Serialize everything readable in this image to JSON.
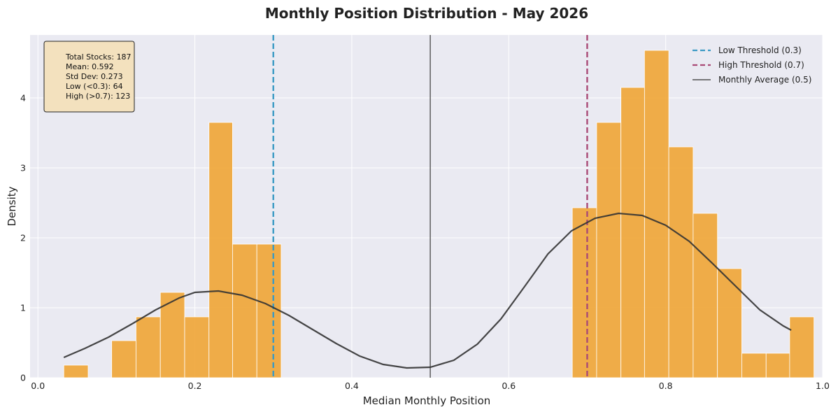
{
  "chart_data": {
    "type": "bar",
    "title": "Monthly Position Distribution - May 2026",
    "xlabel": "Median Monthly Position",
    "ylabel": "Density",
    "xlim": [
      -0.01,
      1.0
    ],
    "ylim": [
      0,
      4.9
    ],
    "x_ticks": [
      "0.0",
      "0.2",
      "0.4",
      "0.6",
      "0.8",
      "1.0"
    ],
    "x_tick_values": [
      0.0,
      0.2,
      0.4,
      0.6,
      0.8,
      1.0
    ],
    "y_ticks": [
      "0",
      "1",
      "2",
      "3",
      "4"
    ],
    "y_tick_values": [
      0,
      1,
      2,
      3,
      4
    ],
    "grid": true,
    "bar_color": "#F0A535",
    "background_color": "#EAEAF2",
    "bins": [
      {
        "x0": 0.033,
        "x1": 0.064,
        "density": 0.18
      },
      {
        "x0": 0.094,
        "x1": 0.125,
        "density": 0.53
      },
      {
        "x0": 0.125,
        "x1": 0.156,
        "density": 0.87
      },
      {
        "x0": 0.156,
        "x1": 0.187,
        "density": 1.22
      },
      {
        "x0": 0.187,
        "x1": 0.218,
        "density": 0.87
      },
      {
        "x0": 0.218,
        "x1": 0.248,
        "density": 3.65
      },
      {
        "x0": 0.248,
        "x1": 0.279,
        "density": 1.91
      },
      {
        "x0": 0.279,
        "x1": 0.31,
        "density": 1.91
      },
      {
        "x0": 0.681,
        "x1": 0.712,
        "density": 2.43
      },
      {
        "x0": 0.712,
        "x1": 0.743,
        "density": 3.65
      },
      {
        "x0": 0.743,
        "x1": 0.773,
        "density": 4.15
      },
      {
        "x0": 0.773,
        "x1": 0.804,
        "density": 4.68
      },
      {
        "x0": 0.804,
        "x1": 0.835,
        "density": 3.3
      },
      {
        "x0": 0.835,
        "x1": 0.866,
        "density": 2.35
      },
      {
        "x0": 0.866,
        "x1": 0.897,
        "density": 1.56
      },
      {
        "x0": 0.897,
        "x1": 0.928,
        "density": 0.35
      },
      {
        "x0": 0.928,
        "x1": 0.958,
        "density": 0.35
      },
      {
        "x0": 0.958,
        "x1": 0.989,
        "density": 0.87
      }
    ],
    "kde": {
      "color": "#333333",
      "x": [
        0.033,
        0.06,
        0.09,
        0.12,
        0.15,
        0.18,
        0.2,
        0.23,
        0.26,
        0.29,
        0.32,
        0.35,
        0.38,
        0.41,
        0.44,
        0.47,
        0.5,
        0.53,
        0.56,
        0.59,
        0.62,
        0.65,
        0.68,
        0.71,
        0.74,
        0.77,
        0.8,
        0.83,
        0.86,
        0.89,
        0.92,
        0.95,
        0.96
      ],
      "y": [
        0.29,
        0.42,
        0.58,
        0.77,
        0.97,
        1.14,
        1.22,
        1.24,
        1.18,
        1.06,
        0.89,
        0.69,
        0.49,
        0.31,
        0.19,
        0.14,
        0.15,
        0.25,
        0.48,
        0.84,
        1.3,
        1.77,
        2.1,
        2.28,
        2.35,
        2.32,
        2.18,
        1.95,
        1.63,
        1.3,
        0.97,
        0.74,
        0.68
      ]
    },
    "reference_lines": [
      {
        "name": "Low Threshold (0.3)",
        "x": 0.3,
        "color": "#3B9AC4",
        "style": "dashed"
      },
      {
        "name": "High Threshold (0.7)",
        "x": 0.7,
        "color": "#A94A76",
        "style": "dashed"
      },
      {
        "name": "Monthly Average (0.5)",
        "x": 0.5,
        "color": "#666666",
        "style": "solid"
      }
    ],
    "legend_position": "top-right",
    "stats_box": [
      "Total Stocks: 187",
      "Mean: 0.592",
      "Std Dev: 0.273",
      "Low (<0.3): 64",
      "High (>0.7): 123"
    ]
  }
}
